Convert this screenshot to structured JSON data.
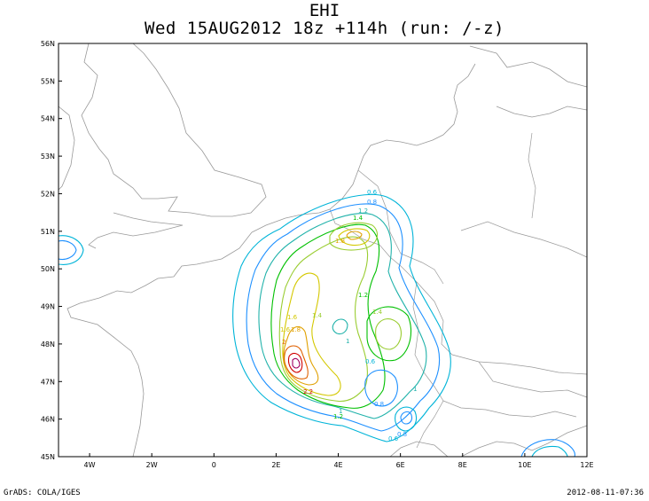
{
  "header": {
    "title_line1": "EHI",
    "title_line2": "Wed 15AUG2012 18z  +114h (run: /-z)"
  },
  "axes": {
    "y_ticks": [
      "56N",
      "55N",
      "54N",
      "53N",
      "52N",
      "51N",
      "50N",
      "49N",
      "48N",
      "47N",
      "46N",
      "45N"
    ],
    "x_ticks": [
      "4W",
      "2W",
      "0",
      "2E",
      "4E",
      "6E",
      "8E",
      "10E",
      "12E"
    ]
  },
  "contour_labels": [
    "0.6",
    "0.8",
    "1.2",
    "1.4",
    "1.8",
    "1.6",
    "1.4",
    "1.2",
    "2",
    "2.2",
    "1.6",
    "1",
    "0.6",
    "1.4",
    "1",
    "0.8",
    "0.6",
    "0.8",
    "1.2",
    "1",
    "1.8"
  ],
  "map_meta": {
    "lon_range": [
      -5,
      12
    ],
    "lat_range": [
      45,
      56
    ],
    "contour_colors": [
      "#00b4d8",
      "#1e90ff",
      "#20b2aa",
      "#00c000",
      "#9acd32",
      "#d4c800",
      "#e0a000",
      "#e06000",
      "#d00000",
      "#a00060"
    ]
  },
  "footer": {
    "left": "GrADS: COLA/IGES",
    "right": "2012-08-11-07:36"
  }
}
